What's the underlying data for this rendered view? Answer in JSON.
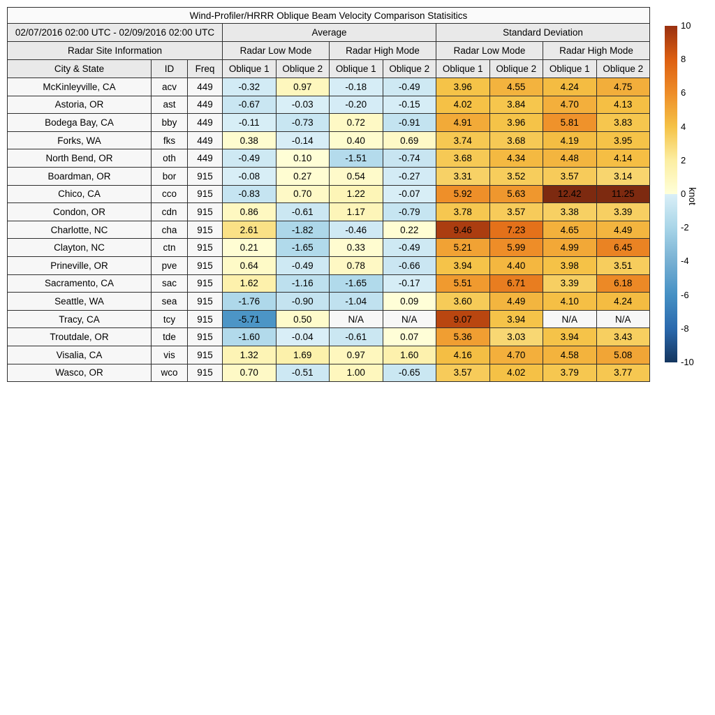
{
  "chart_data": {
    "type": "table",
    "title": "Wind-Profiler/HRRR Oblique Beam Velocity Comparison Statisitics",
    "date_range": "02/07/2016 02:00 UTC - 02/09/2016 02:00 UTC",
    "group_labels": {
      "average": "Average",
      "std": "Standard Deviation"
    },
    "site_info_label": "Radar Site Information",
    "mode_labels": [
      "Radar Low Mode",
      "Radar High Mode",
      "Radar Low Mode",
      "Radar High Mode"
    ],
    "columns": [
      "City & State",
      "ID",
      "Freq",
      "Oblique 1",
      "Oblique 2",
      "Oblique 1",
      "Oblique 2",
      "Oblique 1",
      "Oblique 2",
      "Oblique 1",
      "Oblique 2"
    ],
    "rows": [
      {
        "city": "McKinleyville, CA",
        "id": "acv",
        "freq": "449",
        "values": [
          -0.32,
          0.97,
          -0.18,
          -0.49,
          3.96,
          4.55,
          4.24,
          4.75
        ]
      },
      {
        "city": "Astoria, OR",
        "id": "ast",
        "freq": "449",
        "values": [
          -0.67,
          -0.03,
          -0.2,
          -0.15,
          4.02,
          3.84,
          4.7,
          4.13
        ]
      },
      {
        "city": "Bodega Bay, CA",
        "id": "bby",
        "freq": "449",
        "values": [
          -0.11,
          -0.73,
          0.72,
          -0.91,
          4.91,
          3.96,
          5.81,
          3.83
        ]
      },
      {
        "city": "Forks, WA",
        "id": "fks",
        "freq": "449",
        "values": [
          0.38,
          -0.14,
          0.4,
          0.69,
          3.74,
          3.68,
          4.19,
          3.95
        ]
      },
      {
        "city": "North Bend, OR",
        "id": "oth",
        "freq": "449",
        "values": [
          -0.49,
          0.1,
          -1.51,
          -0.74,
          3.68,
          4.34,
          4.48,
          4.14
        ]
      },
      {
        "city": "Boardman, OR",
        "id": "bor",
        "freq": "915",
        "values": [
          -0.08,
          0.27,
          0.54,
          -0.27,
          3.31,
          3.52,
          3.57,
          3.14
        ]
      },
      {
        "city": "Chico, CA",
        "id": "cco",
        "freq": "915",
        "values": [
          -0.83,
          0.7,
          1.22,
          -0.07,
          5.92,
          5.63,
          12.42,
          11.25
        ]
      },
      {
        "city": "Condon, OR",
        "id": "cdn",
        "freq": "915",
        "values": [
          0.86,
          -0.61,
          1.17,
          -0.79,
          3.78,
          3.57,
          3.38,
          3.39
        ]
      },
      {
        "city": "Charlotte, NC",
        "id": "cha",
        "freq": "915",
        "values": [
          2.61,
          -1.82,
          -0.46,
          0.22,
          9.46,
          7.23,
          4.65,
          4.49
        ]
      },
      {
        "city": "Clayton, NC",
        "id": "ctn",
        "freq": "915",
        "values": [
          0.21,
          -1.65,
          0.33,
          -0.49,
          5.21,
          5.99,
          4.99,
          6.45
        ]
      },
      {
        "city": "Prineville, OR",
        "id": "pve",
        "freq": "915",
        "values": [
          0.64,
          -0.49,
          0.78,
          -0.66,
          3.94,
          4.4,
          3.98,
          3.51
        ]
      },
      {
        "city": "Sacramento, CA",
        "id": "sac",
        "freq": "915",
        "values": [
          1.62,
          -1.16,
          -1.65,
          -0.17,
          5.51,
          6.71,
          3.39,
          6.18
        ]
      },
      {
        "city": "Seattle, WA",
        "id": "sea",
        "freq": "915",
        "values": [
          -1.76,
          -0.9,
          -1.04,
          0.09,
          3.6,
          4.49,
          4.1,
          4.24
        ]
      },
      {
        "city": "Tracy, CA",
        "id": "tcy",
        "freq": "915",
        "values": [
          -5.71,
          0.5,
          "N/A",
          "N/A",
          9.07,
          3.94,
          "N/A",
          "N/A"
        ]
      },
      {
        "city": "Troutdale, OR",
        "id": "tde",
        "freq": "915",
        "values": [
          -1.6,
          -0.04,
          -0.61,
          0.07,
          5.36,
          3.03,
          3.94,
          3.43
        ]
      },
      {
        "city": "Visalia, CA",
        "id": "vis",
        "freq": "915",
        "values": [
          1.32,
          1.69,
          0.97,
          1.6,
          4.16,
          4.7,
          4.58,
          5.08
        ]
      },
      {
        "city": "Wasco, OR",
        "id": "wco",
        "freq": "915",
        "values": [
          0.7,
          -0.51,
          1.0,
          -0.65,
          3.57,
          4.02,
          3.79,
          3.77
        ]
      }
    ],
    "colorbar": {
      "label": "knot",
      "min": -10,
      "max": 10,
      "ticks": [
        10,
        8,
        6,
        4,
        2,
        0,
        -2,
        -4,
        -6,
        -8,
        -10
      ]
    },
    "colormap": {
      "stops": [
        [
          -10,
          "#14355e"
        ],
        [
          -8,
          "#2a69ad"
        ],
        [
          -6,
          "#4590c4"
        ],
        [
          -4,
          "#77b0d3"
        ],
        [
          -2,
          "#a8d5e8"
        ],
        [
          -0.0001,
          "#daeff7"
        ],
        [
          0,
          "#ffffd9"
        ],
        [
          2,
          "#fceea2"
        ],
        [
          4,
          "#f5c246"
        ],
        [
          6,
          "#ee8d28"
        ],
        [
          8,
          "#dd5f11"
        ],
        [
          10,
          "#993010"
        ]
      ],
      "over": "#7d2a10",
      "na_color": "#f7f7f7"
    }
  }
}
